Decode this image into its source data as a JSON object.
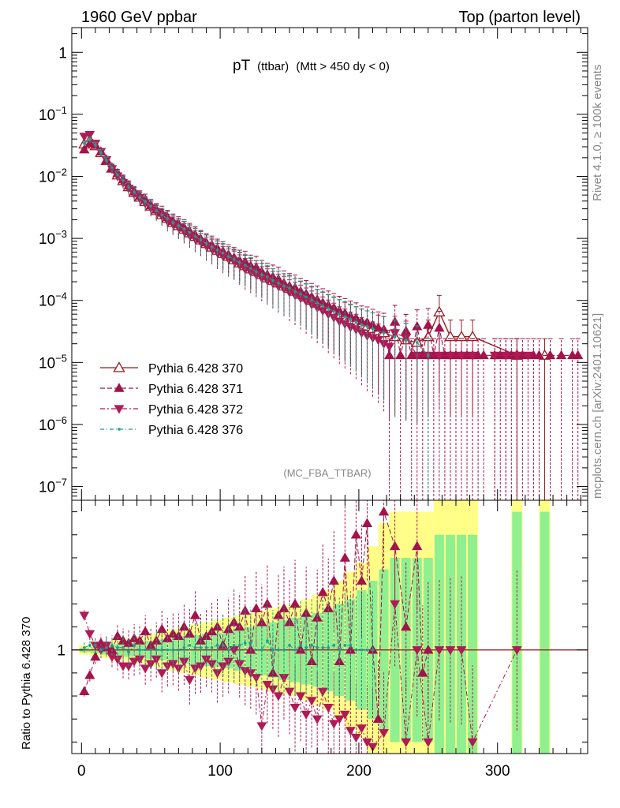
{
  "header": {
    "left_title": "1960 GeV ppbar",
    "right_title": "Top (parton level)"
  },
  "side": {
    "rivet": "Rivet 4.1.0, ≥ 100k events",
    "mcplots": "mcplots.cern.ch [arXiv:2401.10621]"
  },
  "colors": {
    "ref": "#9b1b1e",
    "dark": "#a3134a",
    "pink": "#b01a55",
    "teal": "#1f9e8a",
    "band_yellow": "#ffff88",
    "band_green": "#90f090"
  },
  "chart_data": {
    "type": "line",
    "title_main": "pT",
    "title_sub": "(ttbar)",
    "title_cond": "(Mtt > 450 dy < 0)",
    "watermark": "(MC_FBA_TTBAR)",
    "ylabel_ratio": "Ratio to Pythia 6.428 370",
    "xlabel": "",
    "xlim": [
      -7,
      365
    ],
    "ylim_main": [
      6e-08,
      2.5
    ],
    "ylim_ratio": [
      0.55,
      1.65
    ],
    "main_yticks": [
      "1",
      "10^-1",
      "10^-2",
      "10^-3",
      "10^-4",
      "10^-5",
      "10^-6",
      "10^-7"
    ],
    "xticks": [
      "0",
      "100",
      "200",
      "300"
    ],
    "ratio_yticks": [
      "1"
    ],
    "legend_position": "left-middle",
    "series": [
      {
        "name": "Pythia 6.428 370",
        "style": "solid-open-triangle",
        "x": [
          2,
          6,
          10,
          14,
          18,
          22,
          26,
          30,
          34,
          38,
          42,
          46,
          50,
          54,
          58,
          62,
          66,
          70,
          74,
          78,
          82,
          86,
          90,
          94,
          98,
          102,
          106,
          110,
          114,
          118,
          122,
          126,
          130,
          134,
          138,
          142,
          146,
          150,
          154,
          158,
          162,
          166,
          170,
          174,
          178,
          182,
          186,
          190,
          194,
          198,
          202,
          206,
          210,
          214,
          218,
          226,
          234,
          242,
          250,
          258,
          266,
          274,
          282,
          314,
          334
        ],
        "y": [
          0.033,
          0.038,
          0.031,
          0.024,
          0.018,
          0.0135,
          0.0105,
          0.0085,
          0.0068,
          0.0055,
          0.0046,
          0.0039,
          0.0033,
          0.0028,
          0.0024,
          0.0021,
          0.0018,
          0.0016,
          0.0014,
          0.00122,
          0.00107,
          0.00094,
          0.00082,
          0.00072,
          0.00064,
          0.00057,
          0.00051,
          0.00045,
          0.0004,
          0.00036,
          0.00032,
          0.00029,
          0.00026,
          0.00023,
          0.00021,
          0.00019,
          0.00017,
          0.000155,
          0.00014,
          0.000125,
          0.000113,
          0.0001,
          9e-05,
          8.1e-05,
          7.3e-05,
          6.6e-05,
          6e-05,
          5.4e-05,
          4.9e-05,
          4.5e-05,
          4.1e-05,
          3.8e-05,
          3.5e-05,
          3.2e-05,
          3e-05,
          2.6e-05,
          2.3e-05,
          2.1e-05,
          2.6e-05,
          6.5e-05,
          2.6e-05,
          2.6e-05,
          2.6e-05,
          1.3e-05,
          1.3e-05
        ]
      },
      {
        "name": "Pythia 6.428 371",
        "style": "dashed-filled-triangle-up",
        "x": [
          2,
          6,
          10,
          14,
          18,
          22,
          26,
          30,
          34,
          38,
          42,
          46,
          50,
          54,
          58,
          62,
          66,
          70,
          74,
          78,
          82,
          86,
          90,
          94,
          98,
          102,
          106,
          110,
          114,
          118,
          122,
          126,
          130,
          134,
          138,
          142,
          146,
          150,
          154,
          158,
          162,
          166,
          170,
          174,
          178,
          182,
          186,
          190,
          194,
          198,
          202,
          206,
          210,
          214,
          218,
          222,
          226,
          230,
          234,
          238,
          242,
          246,
          250,
          254,
          258,
          262,
          266,
          270,
          274,
          278,
          282,
          286,
          290,
          298,
          302,
          306,
          310,
          314,
          318,
          326,
          330,
          338,
          346,
          354,
          358
        ],
        "y": [
          0.027,
          0.034,
          0.032,
          0.025,
          0.018,
          0.0136,
          0.0112,
          0.0089,
          0.0071,
          0.0057,
          0.0048,
          0.0042,
          0.0034,
          0.0029,
          0.0026,
          0.0022,
          0.0019,
          0.0017,
          0.0015,
          0.0013,
          0.00114,
          0.00098,
          0.00086,
          0.00078,
          0.00069,
          0.00062,
          0.00055,
          0.00049,
          0.00044,
          0.00042,
          0.00036,
          0.00034,
          0.00029,
          0.00026,
          0.00024,
          0.00022,
          0.00019,
          0.00017,
          0.00016,
          0.00014,
          0.000128,
          0.000114,
          0.000103,
          9.2e-05,
          8.4e-05,
          7.6e-05,
          6.8e-05,
          6.2e-05,
          5.6e-05,
          5.2e-05,
          4.6e-05,
          4.4e-05,
          4e-05,
          3.6e-05,
          3.4e-05,
          1.3e-05,
          4.5e-05,
          1.3e-05,
          3.2e-05,
          1.3e-05,
          3.8e-05,
          1.3e-05,
          4e-05,
          1.3e-05,
          3.6e-05,
          1.3e-05,
          1.3e-05,
          1.3e-05,
          1.3e-05,
          1.3e-05,
          1.3e-05,
          1.3e-05,
          1.3e-05,
          1.3e-05,
          1.3e-05,
          1.3e-05,
          1.3e-05,
          1.3e-05,
          1.3e-05,
          1.3e-05,
          1.3e-05,
          1.3e-05,
          1.3e-05,
          1.3e-05,
          1.3e-05
        ]
      },
      {
        "name": "Pythia 6.428 372",
        "style": "dashdot-filled-triangle-down",
        "x": [
          2,
          6,
          10,
          14,
          18,
          22,
          26,
          30,
          34,
          38,
          42,
          46,
          50,
          54,
          58,
          62,
          66,
          70,
          74,
          78,
          82,
          86,
          90,
          94,
          98,
          102,
          106,
          110,
          114,
          118,
          122,
          126,
          130,
          134,
          138,
          142,
          146,
          150,
          154,
          158,
          162,
          166,
          170,
          174,
          178,
          182,
          186,
          190,
          194,
          198,
          202,
          206,
          210,
          214,
          218,
          222,
          226,
          234,
          242,
          250,
          258,
          266,
          274,
          282,
          298,
          306,
          314,
          322
        ],
        "y": [
          0.044,
          0.047,
          0.034,
          0.025,
          0.0185,
          0.0132,
          0.0101,
          0.0079,
          0.0064,
          0.0052,
          0.0045,
          0.0037,
          0.0031,
          0.0027,
          0.0023,
          0.0019,
          0.0017,
          0.0015,
          0.0013,
          0.00113,
          0.00099,
          0.00088,
          0.00076,
          0.00068,
          0.00059,
          0.00052,
          0.00047,
          0.00043,
          0.00037,
          0.00032,
          0.00029,
          0.00026,
          0.00023,
          0.00021,
          0.00019,
          0.00017,
          0.000155,
          0.000135,
          0.000122,
          0.000109,
          9.7e-05,
          8.6e-05,
          7.7e-05,
          6.8e-05,
          6e-05,
          5.3e-05,
          4.6e-05,
          4.2e-05,
          3.7e-05,
          3.4e-05,
          3e-05,
          2.7e-05,
          2.5e-05,
          2.3e-05,
          2e-05,
          1.8e-05,
          3e-05,
          2.5e-05,
          1.3e-05,
          1.3e-05,
          1.3e-05,
          1.3e-05,
          1.3e-05,
          1.3e-05,
          1.3e-05,
          1.3e-05,
          1.3e-05,
          1.3e-05
        ]
      },
      {
        "name": "Pythia 6.428 376",
        "style": "dashdot-dot",
        "x": [
          2,
          6,
          10,
          14,
          18,
          22,
          26,
          30,
          34,
          38,
          42,
          46,
          50,
          54,
          58,
          62,
          66,
          70,
          74,
          78,
          82,
          86,
          90,
          94,
          98,
          102,
          106,
          110,
          114,
          118,
          122,
          126,
          130,
          134,
          138,
          142,
          146,
          150,
          154,
          158,
          162,
          166,
          170,
          174,
          178,
          182,
          186,
          190,
          194,
          198,
          202,
          206,
          210,
          218,
          226,
          234,
          242,
          250
        ],
        "y": [
          0.034,
          0.039,
          0.032,
          0.024,
          0.0181,
          0.0138,
          0.0106,
          0.0086,
          0.0067,
          0.0056,
          0.0046,
          0.0039,
          0.0033,
          0.0028,
          0.0024,
          0.0021,
          0.0018,
          0.0016,
          0.00142,
          0.00124,
          0.00108,
          0.00095,
          0.00083,
          0.00073,
          0.00065,
          0.00058,
          0.00051,
          0.00046,
          0.00041,
          0.00037,
          0.00033,
          0.00029,
          0.00026,
          0.00024,
          0.00021,
          0.00019,
          0.00017,
          0.000158,
          0.00014,
          0.000127,
          0.000114,
          0.000102,
          9.1e-05,
          8.2e-05,
          7.4e-05,
          6.7e-05,
          6e-05,
          5.5e-05,
          5e-05,
          4.5e-05,
          4.1e-05,
          3.8e-05,
          3.5e-05,
          3e-05,
          2.6e-05,
          2.3e-05,
          2.1e-05,
          1.3e-05
        ]
      }
    ],
    "ratio_band": {
      "x": [
        2,
        10,
        18,
        26,
        34,
        42,
        50,
        58,
        66,
        74,
        82,
        90,
        98,
        106,
        114,
        122,
        130,
        138,
        146,
        154,
        162,
        170,
        178,
        186,
        194,
        202,
        210,
        218,
        226,
        234,
        242,
        250,
        258,
        266,
        274,
        282,
        314,
        334
      ],
      "yellow_half": [
        0.02,
        0.025,
        0.035,
        0.045,
        0.05,
        0.06,
        0.07,
        0.08,
        0.09,
        0.1,
        0.11,
        0.12,
        0.13,
        0.14,
        0.15,
        0.16,
        0.17,
        0.18,
        0.19,
        0.2,
        0.22,
        0.24,
        0.26,
        0.3,
        0.34,
        0.38,
        0.45,
        0.55,
        0.6,
        0.6,
        0.6,
        0.6,
        0.7,
        0.7,
        0.7,
        0.7,
        0.8,
        0.8
      ],
      "green_half": [
        0.01,
        0.015,
        0.02,
        0.025,
        0.03,
        0.035,
        0.04,
        0.045,
        0.05,
        0.06,
        0.065,
        0.07,
        0.075,
        0.08,
        0.09,
        0.1,
        0.11,
        0.12,
        0.13,
        0.14,
        0.15,
        0.16,
        0.18,
        0.2,
        0.22,
        0.26,
        0.3,
        0.35,
        0.4,
        0.4,
        0.4,
        0.4,
        0.5,
        0.5,
        0.5,
        0.5,
        0.6,
        0.6
      ]
    },
    "ratio_series": [
      {
        "name": "Pythia 6.428 371",
        "x": [
          2,
          6,
          10,
          14,
          18,
          22,
          26,
          30,
          34,
          38,
          42,
          46,
          50,
          54,
          58,
          62,
          66,
          70,
          74,
          78,
          82,
          86,
          90,
          94,
          98,
          102,
          106,
          110,
          114,
          118,
          122,
          126,
          130,
          134,
          138,
          142,
          146,
          150,
          154,
          158,
          162,
          166,
          170,
          174,
          178,
          182,
          186,
          190,
          194,
          198,
          202,
          206,
          210,
          214,
          218,
          226,
          234,
          242,
          246,
          250
        ],
        "y": [
          0.82,
          0.89,
          0.97,
          1.03,
          1.01,
          1.0,
          1.06,
          1.04,
          1.03,
          1.05,
          1.04,
          1.08,
          1.02,
          1.04,
          1.09,
          1.05,
          1.07,
          1.06,
          1.1,
          1.07,
          1.15,
          1.04,
          1.06,
          1.08,
          1.1,
          1.02,
          1.09,
          1.12,
          1.1,
          1.17,
          1.0,
          1.18,
          1.12,
          1.2,
          0.9,
          1.15,
          1.18,
          1.12,
          1.2,
          1.0,
          1.16,
          0.95,
          1.14,
          1.25,
          1.18,
          1.3,
          0.95,
          1.4,
          1.0,
          1.5,
          1.3,
          1.55,
          1.0,
          0.7,
          1.6,
          1.45,
          1.1,
          1.45,
          0.9,
          1.0
        ]
      },
      {
        "name": "Pythia 6.428 372",
        "x": [
          2,
          6,
          10,
          14,
          18,
          22,
          26,
          30,
          34,
          38,
          42,
          46,
          50,
          54,
          58,
          62,
          66,
          70,
          74,
          78,
          82,
          86,
          90,
          94,
          98,
          102,
          106,
          110,
          114,
          118,
          122,
          126,
          130,
          134,
          138,
          142,
          146,
          150,
          154,
          158,
          162,
          166,
          170,
          174,
          178,
          182,
          186,
          190,
          194,
          198,
          202,
          206,
          210,
          218,
          226,
          234,
          242,
          250,
          258,
          266,
          274,
          282,
          314
        ],
        "y": [
          1.15,
          1.07,
          1.02,
          1.0,
          1.02,
          0.97,
          0.96,
          0.93,
          0.93,
          0.95,
          0.96,
          0.92,
          0.94,
          0.96,
          0.9,
          0.93,
          0.94,
          0.92,
          0.95,
          0.87,
          0.92,
          0.93,
          0.96,
          0.94,
          0.9,
          0.93,
          0.95,
          1.0,
          0.94,
          0.91,
          0.9,
          0.88,
          0.67,
          0.85,
          0.83,
          0.8,
          0.88,
          0.82,
          0.75,
          0.8,
          0.72,
          0.78,
          0.7,
          0.82,
          0.75,
          0.68,
          0.7,
          0.72,
          0.65,
          0.62,
          0.66,
          0.6,
          0.58,
          0.64,
          1.2,
          0.6,
          1.0,
          0.6,
          1.0,
          1.0,
          1.0,
          0.6,
          1.0
        ]
      },
      {
        "name": "Pythia 6.428 376",
        "x": [
          2,
          6,
          10,
          14,
          18,
          22,
          26,
          30,
          34,
          38,
          42,
          46,
          50,
          54,
          58,
          62,
          66,
          70,
          74,
          78,
          82,
          86,
          90,
          94,
          98,
          102,
          106,
          110,
          114,
          118,
          122,
          126,
          130,
          134,
          138,
          142,
          146,
          150,
          154,
          158,
          162,
          166,
          170,
          174,
          178,
          182,
          186,
          190,
          194,
          198,
          202,
          206,
          210
        ],
        "y": [
          1.01,
          1.02,
          1.02,
          1.0,
          1.01,
          1.02,
          1.01,
          1.01,
          0.99,
          1.02,
          1.0,
          1.0,
          1.0,
          1.0,
          1.0,
          1.0,
          1.0,
          1.0,
          1.01,
          1.02,
          1.01,
          1.01,
          1.01,
          1.01,
          1.02,
          1.02,
          1.0,
          1.02,
          1.02,
          1.03,
          1.03,
          1.0,
          1.0,
          1.04,
          1.0,
          1.0,
          1.0,
          1.02,
          1.0,
          1.02,
          1.01,
          1.02,
          1.01,
          1.01,
          1.01,
          1.02,
          1.0,
          1.02,
          1.02,
          1.0,
          1.0,
          1.0,
          1.0
        ]
      }
    ]
  }
}
